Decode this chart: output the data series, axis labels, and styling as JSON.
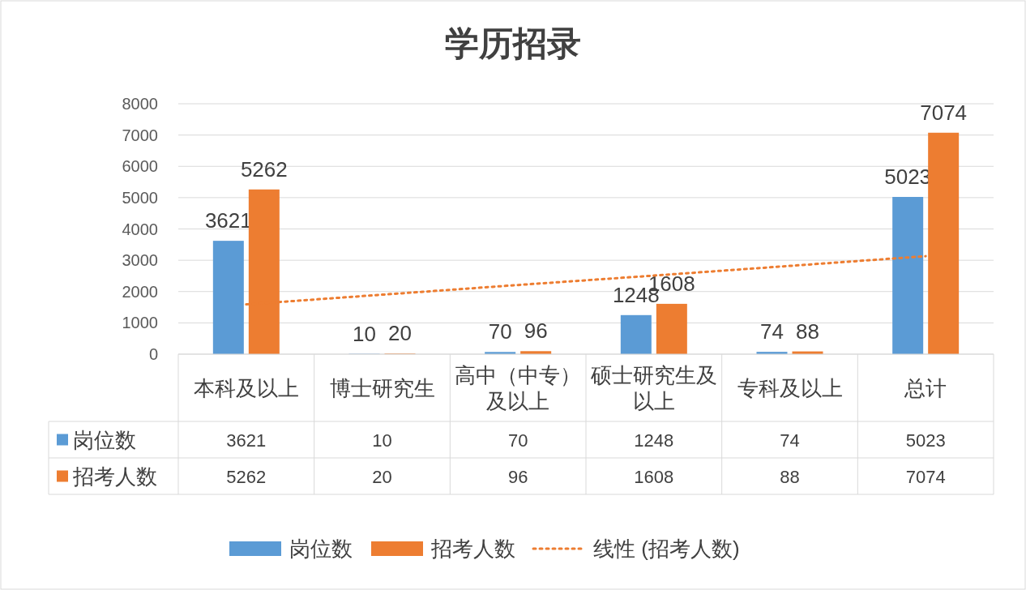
{
  "chart_data": {
    "type": "bar",
    "title": "学历招录",
    "categories": [
      "本科及以上",
      "博士研究生",
      "高中（中专）及以上",
      "硕士研究生及以上",
      "专科及以上",
      "总计"
    ],
    "series": [
      {
        "name": "岗位数",
        "color": "#5b9bd5",
        "values": [
          3621,
          10,
          70,
          1248,
          74,
          5023
        ],
        "value_labels": [
          "3621",
          "10",
          "70",
          "1248",
          "74",
          "5023"
        ]
      },
      {
        "name": "招考人数",
        "color": "#ed7d31",
        "values": [
          5262,
          20,
          96,
          1608,
          88,
          7074
        ],
        "value_labels": [
          "5262",
          "20",
          "96",
          "1608",
          "88",
          "7074"
        ]
      },
      {
        "name": "线性 (招考人数)",
        "type": "line",
        "color": "#ed7d31",
        "line_style": "dotted",
        "marker": "none",
        "values": [
          1590,
          1900,
          2210,
          2510,
          2820,
          3130
        ]
      }
    ],
    "ylim": [
      0,
      8000
    ],
    "yticks": [
      0,
      1000,
      2000,
      3000,
      4000,
      5000,
      6000,
      7000,
      8000
    ],
    "grid": "y",
    "legend": "bottom"
  }
}
